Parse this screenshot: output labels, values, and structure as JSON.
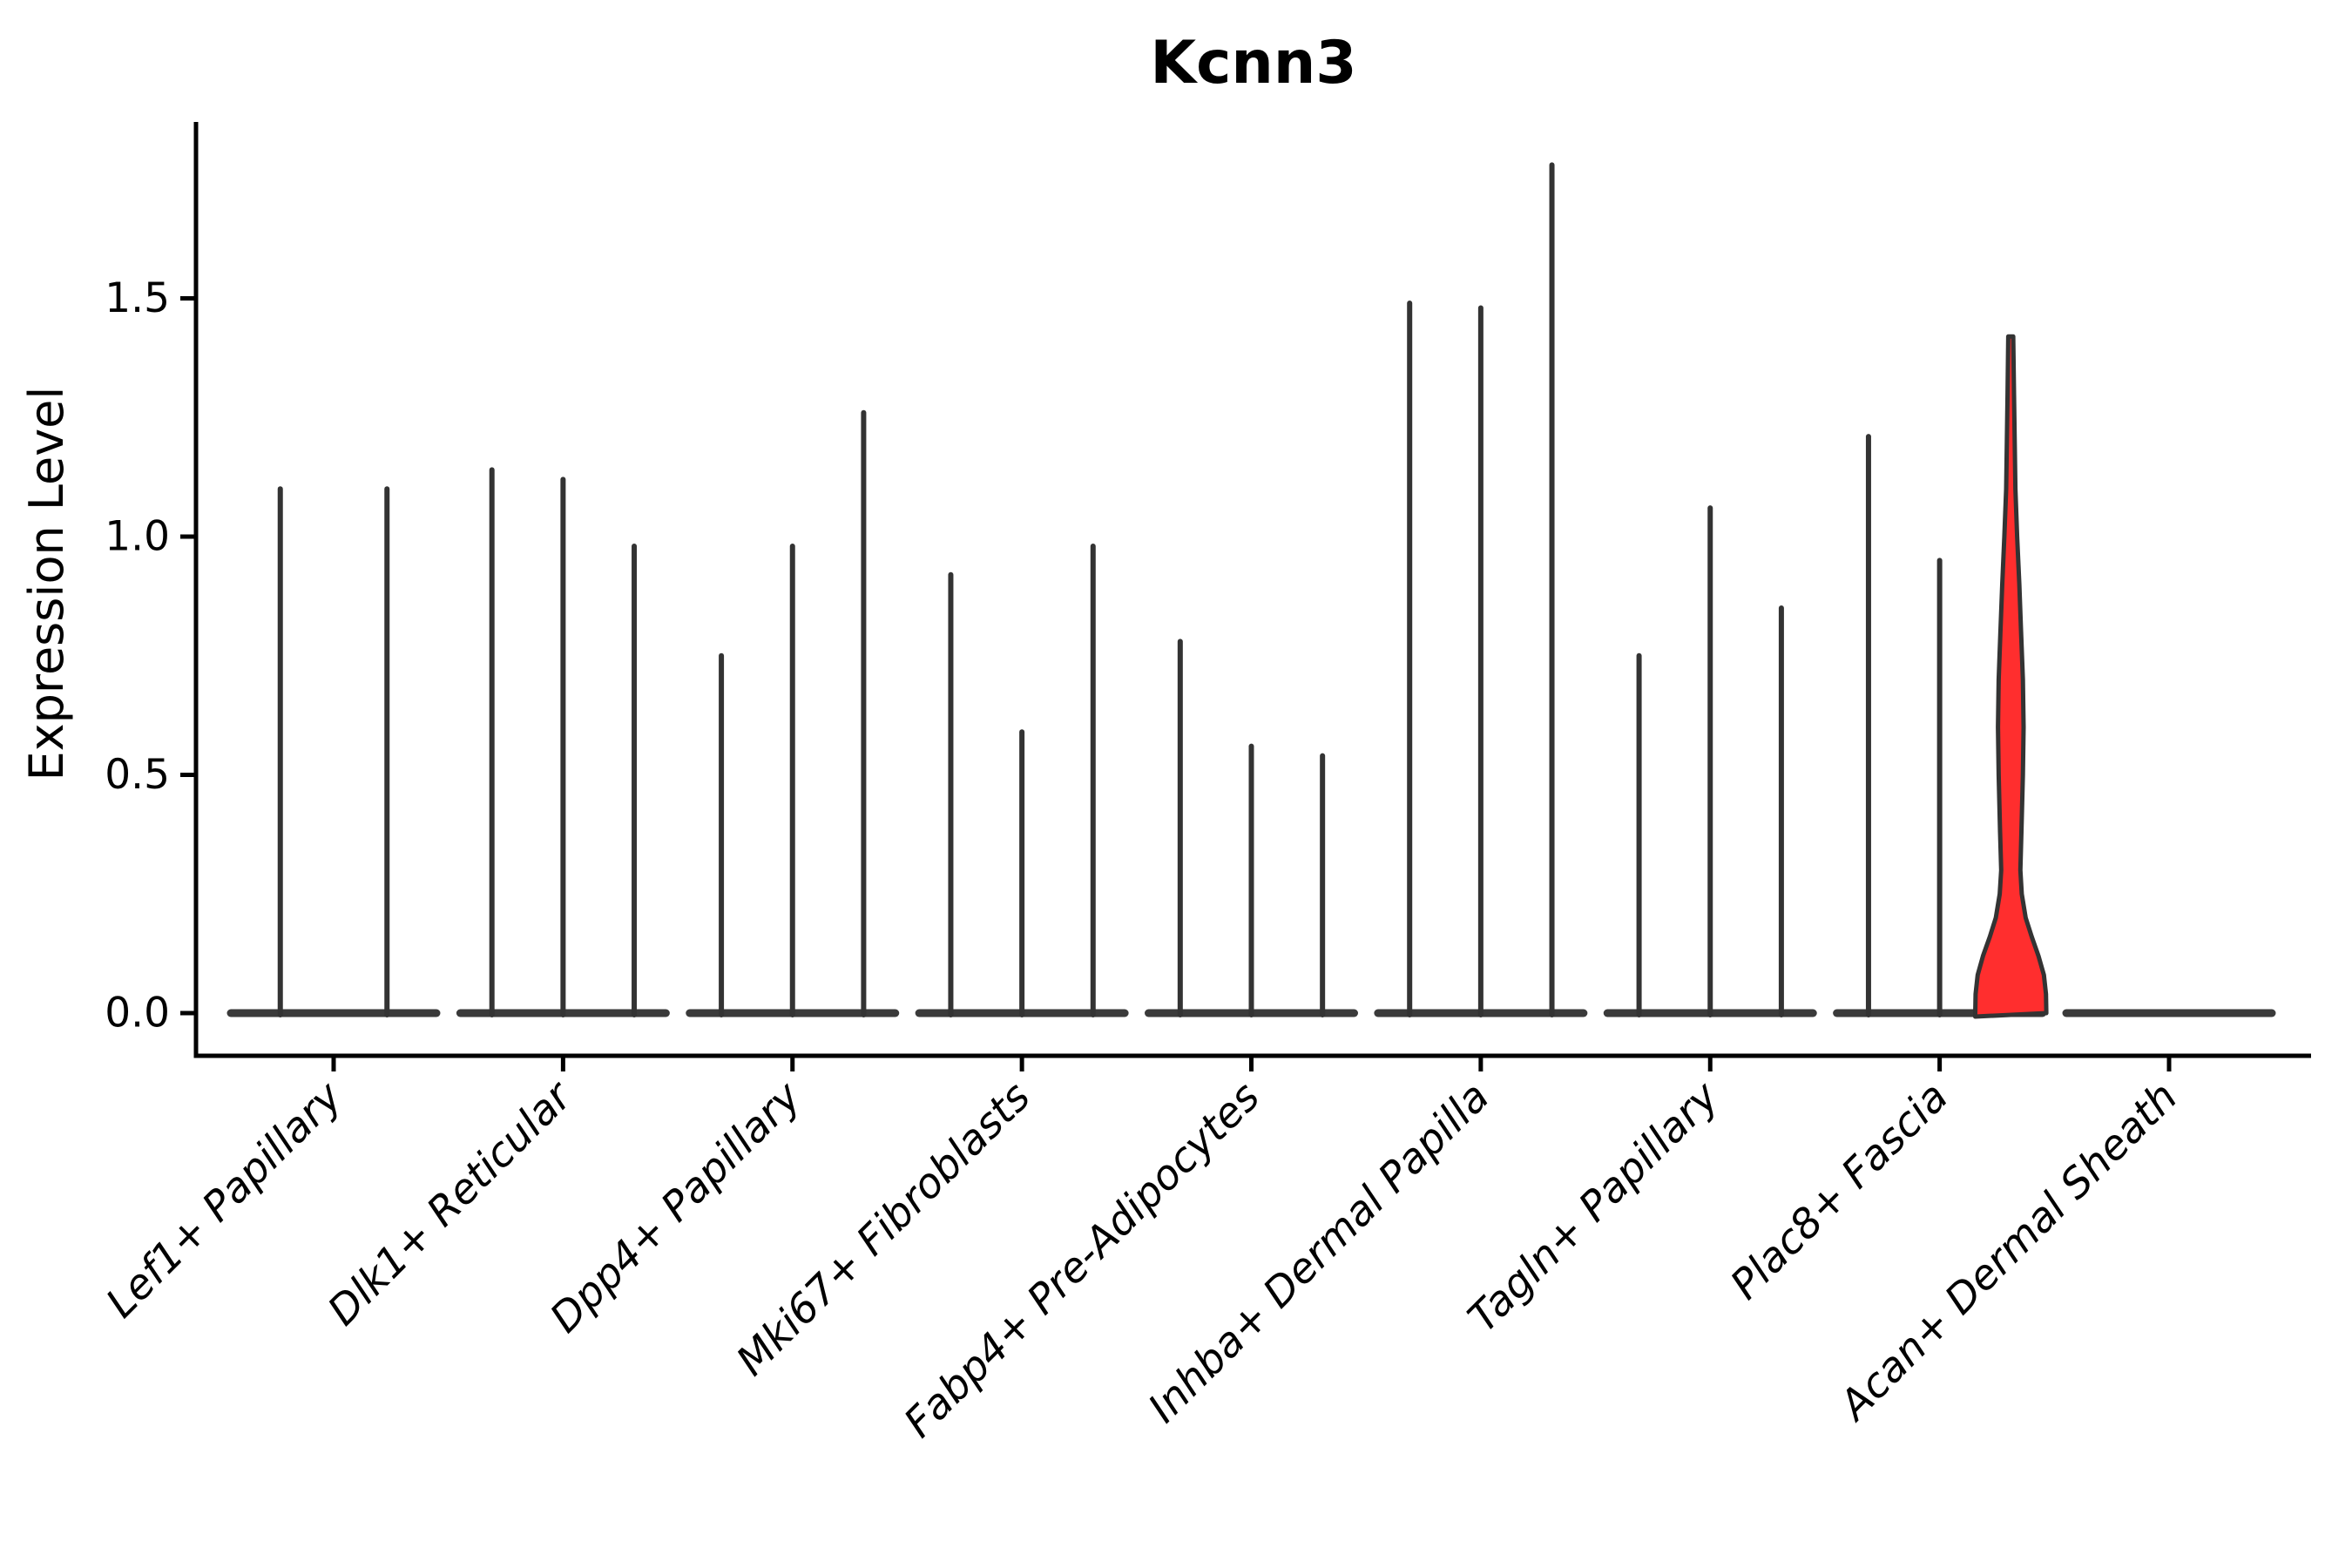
{
  "chart_data": {
    "type": "violin",
    "title": "Kcnn3",
    "xlabel": "",
    "ylabel": "Expression Level",
    "ylim": [
      -0.09,
      1.9
    ],
    "grid": false,
    "legend": "none",
    "yticks": [
      {
        "value": 0.0,
        "label": "0.0"
      },
      {
        "value": 0.5,
        "label": "0.5"
      },
      {
        "value": 1.0,
        "label": "1.0"
      },
      {
        "value": 1.5,
        "label": "1.5"
      }
    ],
    "categories": [
      "Lef1+ Papillary",
      "Dlk1+ Reticular",
      "Dpp4+ Papillary",
      "Mki67+ Fibroblasts",
      "Fabp4+ Pre-Adipocytes",
      "Inhba+ Dermal Papilla",
      "Tagln+ Papillary",
      "Plac8+ Fascia",
      "Acan+ Dermal Sheath"
    ],
    "series": [
      {
        "category": "Lef1+ Papillary",
        "violin_max_values": [
          1.1,
          1.1
        ]
      },
      {
        "category": "Dlk1+ Reticular",
        "violin_max_values": [
          1.14,
          1.12,
          0.98
        ]
      },
      {
        "category": "Dpp4+ Papillary",
        "violin_max_values": [
          0.75,
          0.98,
          1.26
        ]
      },
      {
        "category": "Mki67+ Fibroblasts",
        "violin_max_values": [
          0.92,
          0.59,
          0.98
        ]
      },
      {
        "category": "Fabp4+ Pre-Adipocytes",
        "violin_max_values": [
          0.78,
          0.56,
          0.54
        ]
      },
      {
        "category": "Inhba+ Dermal Papilla",
        "violin_max_values": [
          1.49,
          1.48,
          1.78
        ]
      },
      {
        "category": "Tagln+ Papillary",
        "violin_max_values": [
          0.75,
          1.06,
          0.85
        ]
      },
      {
        "category": "Plac8+ Fascia",
        "violin_max_values": [
          1.21,
          0.95,
          1.42
        ]
      },
      {
        "category": "Acan+ Dermal Sheath",
        "violin_max_values": [
          0,
          0,
          0
        ]
      }
    ],
    "highlighted_violin": {
      "category": "Plac8+ Fascia",
      "violin_index": 2,
      "max": 1.42,
      "fill": "#ff2e2e",
      "width_profile": [
        [
          0.0,
          1.0
        ],
        [
          0.04,
          0.99
        ],
        [
          0.08,
          0.93
        ],
        [
          0.12,
          0.78
        ],
        [
          0.16,
          0.59
        ],
        [
          0.2,
          0.42
        ],
        [
          0.25,
          0.31
        ],
        [
          0.3,
          0.27
        ],
        [
          0.38,
          0.3
        ],
        [
          0.5,
          0.34
        ],
        [
          0.6,
          0.36
        ],
        [
          0.7,
          0.34
        ],
        [
          0.8,
          0.29
        ],
        [
          0.9,
          0.24
        ],
        [
          1.0,
          0.18
        ],
        [
          1.1,
          0.13
        ],
        [
          1.2,
          0.11
        ],
        [
          1.3,
          0.09
        ],
        [
          1.42,
          0.07
        ]
      ]
    },
    "colors": {
      "violin_line": "#333333",
      "baseline_bar": "#3a3a3a",
      "highlight_fill": "#ff2e2e",
      "axis": "#000000",
      "text": "#000000"
    }
  }
}
